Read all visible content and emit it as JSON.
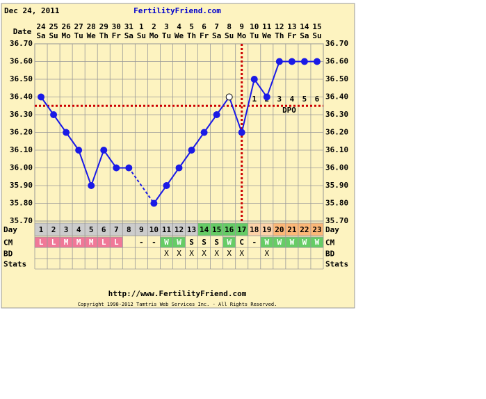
{
  "header": {
    "date": "Dec 24, 2011",
    "site": "FertilityFriend.com"
  },
  "chart_data": {
    "type": "line",
    "x_label": "Date",
    "dates": [
      "24",
      "25",
      "26",
      "27",
      "28",
      "29",
      "30",
      "31",
      "1",
      "2",
      "3",
      "4",
      "5",
      "6",
      "7",
      "8",
      "9",
      "10",
      "11",
      "12",
      "13",
      "14",
      "15"
    ],
    "weekdays": [
      "Sa",
      "Su",
      "Mo",
      "Tu",
      "We",
      "Th",
      "Fr",
      "Sa",
      "Su",
      "Mo",
      "Tu",
      "We",
      "Th",
      "Fr",
      "Sa",
      "Su",
      "Mo",
      "Tu",
      "We",
      "Th",
      "Fr",
      "Sa",
      "Su"
    ],
    "values": [
      36.4,
      36.3,
      36.2,
      36.1,
      35.9,
      36.1,
      36.0,
      36.0,
      null,
      35.8,
      35.9,
      36.0,
      36.1,
      36.2,
      36.3,
      36.4,
      36.2,
      36.5,
      36.4,
      36.6,
      36.6,
      36.6,
      36.6
    ],
    "color": "#1a1ae6",
    "open_days": [
      16
    ],
    "ylim": [
      35.7,
      36.7
    ],
    "yticks": [
      {
        "value": 35.7,
        "label": "35.70"
      },
      {
        "value": 35.8,
        "label": "35.80"
      },
      {
        "value": 35.9,
        "label": "35.90"
      },
      {
        "value": 36.0,
        "label": "36.00"
      },
      {
        "value": 36.1,
        "label": "36.10"
      },
      {
        "value": 36.2,
        "label": "36.20"
      },
      {
        "value": 36.3,
        "label": "36.30"
      },
      {
        "value": 36.4,
        "label": "36.40"
      },
      {
        "value": 36.5,
        "label": "36.50"
      },
      {
        "value": 36.6,
        "label": "36.60"
      },
      {
        "value": 36.7,
        "label": "36.70"
      }
    ],
    "grid": true,
    "coverline": 36.35,
    "ovulation_day": 17,
    "marker_line_color": "#cc0000",
    "dpo": [
      1,
      2,
      3,
      4,
      5,
      6
    ],
    "dpo_label": "DPO",
    "day_label": "Day",
    "days": [
      1,
      2,
      3,
      4,
      5,
      6,
      7,
      8,
      9,
      10,
      11,
      12,
      13,
      14,
      15,
      16,
      17,
      18,
      19,
      20,
      21,
      22,
      23
    ],
    "day_colors": [
      "#cccccc",
      "#cccccc",
      "#cccccc",
      "#cccccc",
      "#cccccc",
      "#cccccc",
      "#cccccc",
      "#cccccc",
      "#cccccc",
      "#cccccc",
      "#cccccc",
      "#cccccc",
      "#cccccc",
      "#66cc66",
      "#66cc66",
      "#66cc66",
      "#66cc66",
      "#fcd2a8",
      "#fcd2a8",
      "#fcb878",
      "#fcb878",
      "#fcb878",
      "#fcb878"
    ],
    "cm_label": "CM",
    "cm": [
      "L",
      "L",
      "M",
      "M",
      "M",
      "L",
      "L",
      null,
      "-",
      "-",
      "W",
      "W",
      "S",
      "S",
      "S",
      "W",
      "C",
      "-",
      "W",
      "W",
      "W",
      "W",
      "W"
    ],
    "cm_colors": [
      "#f07898",
      "#f07898",
      "#f07898",
      "#f07898",
      "#f07898",
      "#f07898",
      "#f07898",
      null,
      null,
      null,
      "#66cc66",
      "#66cc66",
      null,
      null,
      null,
      "#66cc66",
      null,
      null,
      "#66cc66",
      "#66cc66",
      "#66cc66",
      "#66cc66",
      "#66cc66"
    ],
    "bd_label": "BD",
    "bd": [
      null,
      null,
      null,
      null,
      null,
      null,
      null,
      null,
      null,
      null,
      "X",
      "X",
      "X",
      "X",
      "X",
      "X",
      "X",
      null,
      "X",
      null,
      null,
      null,
      null
    ],
    "stats_label": "Stats"
  },
  "footer": {
    "url": "http://www.FertilityFriend.com",
    "copyright": "Copyright 1998-2012 Tamtris Web Services Inc. - All Rights Reserved."
  }
}
